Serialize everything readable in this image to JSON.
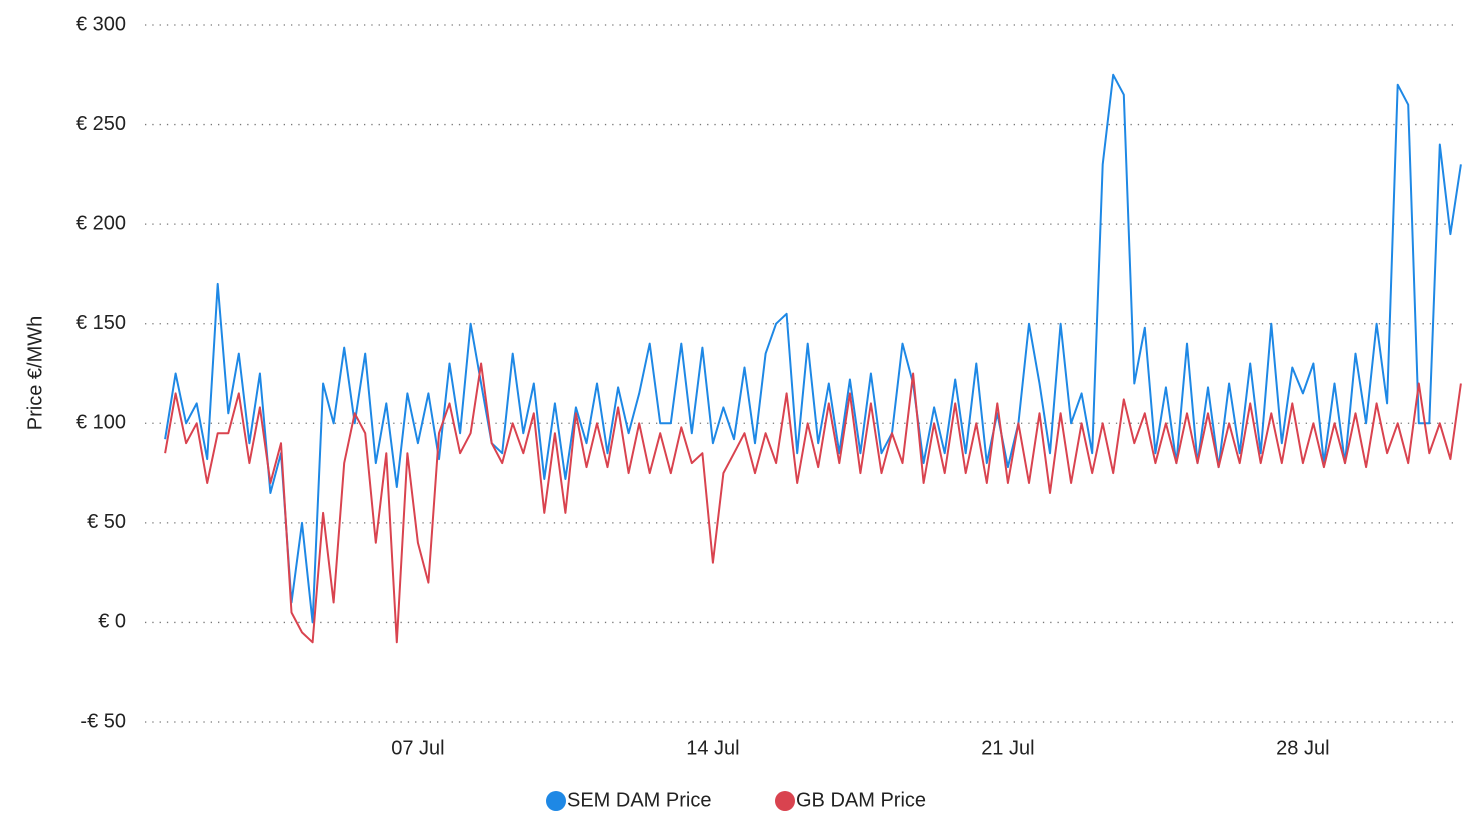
{
  "chart_data": {
    "type": "line",
    "y_label": "Price €/MWh",
    "x": [
      1,
      1.25,
      1.5,
      1.75,
      2,
      2.25,
      2.5,
      2.75,
      3,
      3.25,
      3.5,
      3.75,
      4,
      4.25,
      4.5,
      4.75,
      5,
      5.25,
      5.5,
      5.75,
      6,
      6.25,
      6.5,
      6.75,
      7,
      7.25,
      7.5,
      7.75,
      8,
      8.25,
      8.5,
      8.75,
      9,
      9.25,
      9.5,
      9.75,
      10,
      10.25,
      10.5,
      10.75,
      11,
      11.25,
      11.5,
      11.75,
      12,
      12.25,
      12.5,
      12.75,
      13,
      13.25,
      13.5,
      13.75,
      14,
      14.25,
      14.5,
      14.75,
      15,
      15.25,
      15.5,
      15.75,
      16,
      16.25,
      16.5,
      16.75,
      17,
      17.25,
      17.5,
      17.75,
      18,
      18.25,
      18.5,
      18.75,
      19,
      19.25,
      19.5,
      19.75,
      20,
      20.25,
      20.5,
      20.75,
      21,
      21.25,
      21.5,
      21.75,
      22,
      22.25,
      22.5,
      22.75,
      23,
      23.25,
      23.5,
      23.75,
      24,
      24.25,
      24.5,
      24.75,
      25,
      25.25,
      25.5,
      25.75,
      26,
      26.25,
      26.5,
      26.75,
      27,
      27.25,
      27.5,
      27.75,
      28,
      28.25,
      28.5,
      28.75,
      29,
      29.25,
      29.5,
      29.75,
      30,
      30.25,
      30.5,
      30.75,
      31,
      31.25,
      31.5,
      31.75
    ],
    "series": [
      {
        "name": "SEM DAM Price",
        "color": "#1e88e5",
        "values": [
          92,
          125,
          100,
          110,
          82,
          170,
          105,
          135,
          90,
          125,
          65,
          85,
          10,
          50,
          0,
          120,
          100,
          138,
          100,
          135,
          80,
          110,
          68,
          115,
          90,
          115,
          82,
          130,
          95,
          150,
          120,
          90,
          85,
          135,
          95,
          120,
          72,
          110,
          72,
          108,
          90,
          120,
          85,
          118,
          95,
          115,
          140,
          100,
          100,
          140,
          95,
          138,
          90,
          108,
          92,
          128,
          90,
          135,
          150,
          155,
          85,
          140,
          90,
          120,
          85,
          122,
          85,
          125,
          85,
          95,
          140,
          120,
          80,
          108,
          85,
          122,
          85,
          130,
          80,
          105,
          78,
          100,
          150,
          120,
          85,
          150,
          100,
          115,
          85,
          230,
          275,
          265,
          120,
          148,
          85,
          118,
          80,
          140,
          80,
          118,
          78,
          120,
          85,
          130,
          85,
          150,
          90,
          128,
          115,
          130,
          80,
          120,
          80,
          135,
          100,
          150,
          110,
          270,
          260,
          100,
          100,
          240,
          195,
          230
        ]
      },
      {
        "name": "GB DAM Price",
        "color": "#d9434f",
        "values": [
          85,
          115,
          90,
          100,
          70,
          95,
          95,
          115,
          80,
          108,
          70,
          90,
          5,
          -5,
          -10,
          55,
          10,
          80,
          105,
          95,
          40,
          85,
          -10,
          85,
          40,
          20,
          95,
          110,
          85,
          95,
          130,
          90,
          80,
          100,
          85,
          105,
          55,
          95,
          55,
          105,
          78,
          100,
          78,
          108,
          75,
          100,
          75,
          95,
          75,
          98,
          80,
          85,
          30,
          75,
          85,
          95,
          75,
          95,
          80,
          115,
          70,
          100,
          78,
          110,
          80,
          115,
          75,
          110,
          75,
          95,
          80,
          125,
          70,
          100,
          75,
          110,
          75,
          100,
          70,
          110,
          70,
          100,
          70,
          105,
          65,
          105,
          70,
          100,
          75,
          100,
          75,
          112,
          90,
          105,
          80,
          100,
          80,
          105,
          80,
          105,
          78,
          100,
          80,
          110,
          80,
          105,
          80,
          110,
          80,
          100,
          78,
          100,
          80,
          105,
          78,
          110,
          85,
          100,
          80,
          120,
          85,
          100,
          82,
          120
        ]
      }
    ],
    "xlim": [
      0.5,
      31.8
    ],
    "xticks": [
      {
        "value": 7,
        "label": "07 Jul"
      },
      {
        "value": 14,
        "label": "14 Jul"
      },
      {
        "value": 21,
        "label": "21 Jul"
      },
      {
        "value": 28,
        "label": "28 Jul"
      }
    ],
    "ylim": [
      -50,
      300
    ],
    "yticks": [
      {
        "value": -50,
        "label": "-€ 50"
      },
      {
        "value": 0,
        "label": "€ 0"
      },
      {
        "value": 50,
        "label": "€ 50"
      },
      {
        "value": 100,
        "label": "€ 100"
      },
      {
        "value": 150,
        "label": "€ 150"
      },
      {
        "value": 200,
        "label": "€ 200"
      },
      {
        "value": 250,
        "label": "€ 250"
      },
      {
        "value": 300,
        "label": "€ 300"
      }
    ],
    "grid": true,
    "legend": "bottom"
  }
}
